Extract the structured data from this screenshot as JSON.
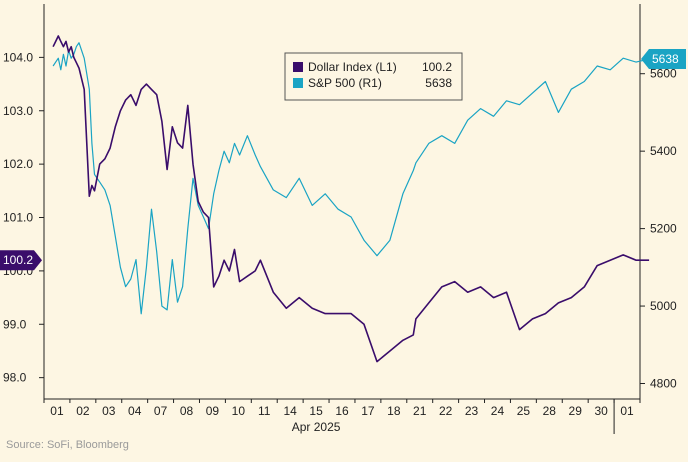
{
  "chart_data": {
    "type": "line",
    "xlabel": "Apr 2025",
    "x_ticks": [
      "01",
      "02",
      "03",
      "04",
      "07",
      "08",
      "09",
      "10",
      "11",
      "14",
      "15",
      "16",
      "17",
      "18",
      "21",
      "22",
      "23",
      "24",
      "25",
      "28",
      "29",
      "30",
      "01"
    ],
    "left_axis": {
      "ylim": [
        97.6,
        105.0
      ],
      "ticks": [
        "98.0",
        "99.0",
        "100.0",
        "101.0",
        "102.0",
        "103.0",
        "104.0"
      ]
    },
    "right_axis": {
      "ylim": [
        4760,
        5780
      ],
      "ticks": [
        "4800",
        "5000",
        "5200",
        "5400",
        "5600"
      ]
    },
    "series": [
      {
        "name": "Dollar Index (L1)",
        "last_label": "100.2",
        "color": "#3a0d6b",
        "axis": "left",
        "x": [
          0,
          0.1,
          0.2,
          0.3,
          0.4,
          0.5,
          0.6,
          0.7,
          0.8,
          0.9,
          1.0,
          1.2,
          1.4,
          1.5,
          1.6,
          1.8,
          2.0,
          2.2,
          2.4,
          2.6,
          2.8,
          3.0,
          3.2,
          3.4,
          3.6,
          3.8,
          4.0,
          4.2,
          4.4,
          4.6,
          4.8,
          5.0,
          5.2,
          5.4,
          5.6,
          5.8,
          6.0,
          6.2,
          6.4,
          6.6,
          6.8,
          7.0,
          7.2,
          7.5,
          7.8,
          8.0,
          8.5,
          9.0,
          9.5,
          10.0,
          10.5,
          11.0,
          11.5,
          12.0,
          12.5,
          13.0,
          13.5,
          13.9,
          14.0,
          14.5,
          15.0,
          15.5,
          16.0,
          16.5,
          17.0,
          17.5,
          18.0,
          18.5,
          19.0,
          19.5,
          20.0,
          20.5,
          21.0,
          21.5,
          22.0,
          22.5,
          23.0
        ],
        "y": [
          104.2,
          104.3,
          104.4,
          104.3,
          104.2,
          104.3,
          104.1,
          104.2,
          104.0,
          103.9,
          103.8,
          103.4,
          101.4,
          101.6,
          101.5,
          102.0,
          102.1,
          102.3,
          102.7,
          103.0,
          103.2,
          103.3,
          103.1,
          103.4,
          103.5,
          103.4,
          103.3,
          102.8,
          101.9,
          102.7,
          102.4,
          102.3,
          103.1,
          102.0,
          101.3,
          101.1,
          101.0,
          99.7,
          99.9,
          100.2,
          100.0,
          100.4,
          99.8,
          99.9,
          100.0,
          100.2,
          99.6,
          99.3,
          99.5,
          99.3,
          99.2,
          99.2,
          99.2,
          99.0,
          98.3,
          98.5,
          98.7,
          98.8,
          99.1,
          99.4,
          99.7,
          99.8,
          99.6,
          99.7,
          99.5,
          99.6,
          98.9,
          99.1,
          99.2,
          99.4,
          99.5,
          99.7,
          100.1,
          100.2,
          100.3,
          100.2,
          100.2
        ]
      },
      {
        "name": "S&P 500 (R1)",
        "last_label": "5638",
        "color": "#1aa4c4",
        "axis": "right",
        "x": [
          0,
          0.1,
          0.2,
          0.3,
          0.4,
          0.5,
          0.6,
          0.7,
          0.8,
          0.9,
          1.0,
          1.2,
          1.4,
          1.5,
          1.6,
          1.8,
          2.0,
          2.2,
          2.4,
          2.6,
          2.8,
          3.0,
          3.2,
          3.4,
          3.6,
          3.8,
          4.0,
          4.2,
          4.4,
          4.6,
          4.8,
          5.0,
          5.2,
          5.4,
          5.6,
          5.8,
          6.0,
          6.2,
          6.4,
          6.6,
          6.8,
          7.0,
          7.2,
          7.5,
          7.8,
          8.0,
          8.5,
          9.0,
          9.5,
          10.0,
          10.5,
          11.0,
          11.5,
          12.0,
          12.5,
          13.0,
          13.5,
          13.9,
          14.0,
          14.5,
          15.0,
          15.5,
          16.0,
          16.5,
          17.0,
          17.5,
          18.0,
          18.5,
          19.0,
          19.5,
          20.0,
          20.5,
          21.0,
          21.5,
          22.0,
          22.5,
          23.0
        ],
        "y": [
          5620,
          5630,
          5640,
          5610,
          5650,
          5620,
          5660,
          5640,
          5650,
          5670,
          5680,
          5640,
          5560,
          5420,
          5340,
          5320,
          5300,
          5260,
          5180,
          5100,
          5050,
          5070,
          5120,
          4980,
          5100,
          5250,
          5140,
          5000,
          4990,
          5120,
          5010,
          5050,
          5200,
          5330,
          5260,
          5230,
          5200,
          5290,
          5350,
          5400,
          5370,
          5420,
          5390,
          5440,
          5390,
          5360,
          5300,
          5280,
          5330,
          5260,
          5290,
          5250,
          5230,
          5170,
          5130,
          5170,
          5290,
          5350,
          5370,
          5420,
          5440,
          5420,
          5480,
          5510,
          5490,
          5530,
          5520,
          5550,
          5580,
          5500,
          5560,
          5580,
          5620,
          5610,
          5640,
          5630,
          5638
        ]
      }
    ],
    "legend": {
      "position": "top-center"
    }
  },
  "footer": {
    "source": "Source: SoFi, Bloomberg"
  }
}
